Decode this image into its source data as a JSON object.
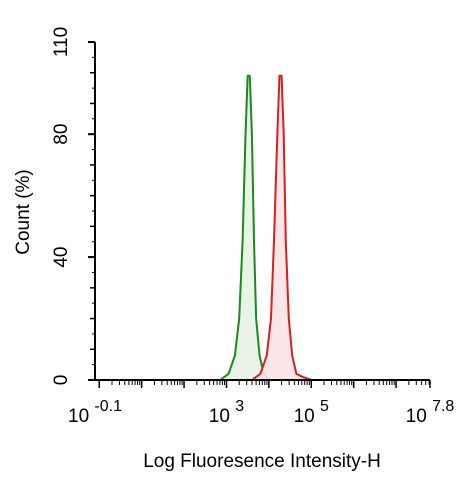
{
  "chart_data": {
    "type": "area",
    "xlabel": "Log Fluoresence Intensity-H",
    "ylabel": "Count  (%)",
    "x_scale": "log10",
    "xlim": [
      -0.1,
      7.8
    ],
    "ylim": [
      0,
      110
    ],
    "y_ticks": [
      0,
      40,
      80,
      110
    ],
    "x_tick_labels": [
      {
        "base": "10",
        "exp": "-0.1",
        "value": -0.1
      },
      {
        "base": "10",
        "exp": "3",
        "value": 3
      },
      {
        "base": "10",
        "exp": "5",
        "value": 5
      },
      {
        "base": "10",
        "exp": "7.8",
        "value": 7.8
      }
    ],
    "grid": false,
    "series": [
      {
        "color": "#1a8a1a",
        "fill": "#e8f2e4",
        "x": [
          2.85,
          3.05,
          3.2,
          3.3,
          3.38,
          3.45,
          3.5,
          3.55,
          3.6,
          3.65,
          3.7,
          3.78,
          3.88,
          4.0
        ],
        "y": [
          0,
          2,
          8,
          20,
          45,
          80,
          99,
          99,
          80,
          45,
          20,
          8,
          2,
          0
        ]
      },
      {
        "color": "#d42020",
        "fill": "#fbe2e4",
        "x": [
          3.6,
          3.8,
          3.95,
          4.05,
          4.12,
          4.2,
          4.25,
          4.3,
          4.35,
          4.4,
          4.47,
          4.55,
          4.65,
          4.8,
          5.0
        ],
        "y": [
          0,
          2,
          8,
          20,
          45,
          80,
          99,
          99,
          80,
          45,
          20,
          8,
          2,
          1,
          0
        ]
      }
    ]
  }
}
